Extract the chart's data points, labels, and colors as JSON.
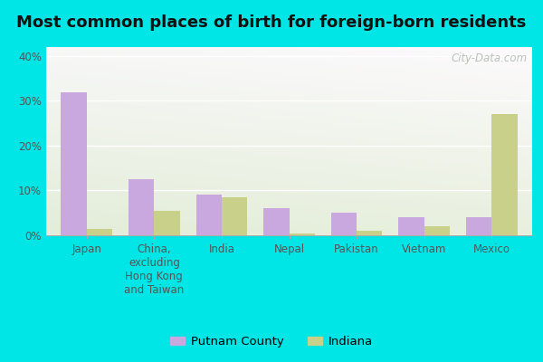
{
  "title": "Most common places of birth for foreign-born residents",
  "categories": [
    "Japan",
    "China,\nexcluding\nHong Kong\nand Taiwan",
    "India",
    "Nepal",
    "Pakistan",
    "Vietnam",
    "Mexico"
  ],
  "putnam_values": [
    32,
    12.5,
    9,
    6,
    5,
    4,
    4
  ],
  "indiana_values": [
    1.5,
    5.5,
    8.5,
    0.5,
    1,
    2,
    27
  ],
  "putnam_color": "#c9a8e0",
  "indiana_color": "#c8d08a",
  "outer_background": "#00e5e5",
  "ylabel_ticks": [
    0,
    10,
    20,
    30,
    40
  ],
  "ylim": [
    0,
    42
  ],
  "bar_width": 0.38,
  "title_fontsize": 13,
  "tick_fontsize": 8.5,
  "legend_fontsize": 9.5,
  "watermark_text": "City-Data.com"
}
